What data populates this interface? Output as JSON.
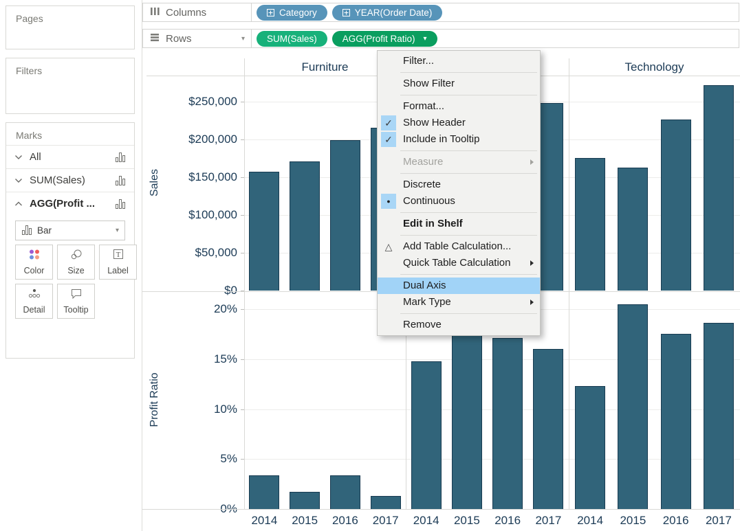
{
  "sidebar": {
    "pages_label": "Pages",
    "filters_label": "Filters",
    "marks_label": "Marks",
    "marks_cards": [
      {
        "label": "All",
        "state": "collapsed",
        "bold": false
      },
      {
        "label": "SUM(Sales)",
        "state": "collapsed",
        "bold": false
      },
      {
        "label": "AGG(Profit ...",
        "state": "expanded",
        "bold": true
      }
    ],
    "mark_type_label": "Bar",
    "mark_buttons": [
      {
        "label": "Color",
        "icon": "color-icon"
      },
      {
        "label": "Size",
        "icon": "size-icon"
      },
      {
        "label": "Label",
        "icon": "label-icon"
      },
      {
        "label": "Detail",
        "icon": "detail-icon"
      },
      {
        "label": "Tooltip",
        "icon": "tooltip-icon"
      }
    ]
  },
  "shelves": {
    "columns": {
      "label": "Columns",
      "pills": [
        {
          "label": "Category",
          "kind": "dimension",
          "grid_icon": true,
          "caret": false
        },
        {
          "label": "YEAR(Order Date)",
          "kind": "dimension",
          "grid_icon": true,
          "caret": false
        }
      ]
    },
    "rows": {
      "label": "Rows",
      "pills": [
        {
          "label": "SUM(Sales)",
          "kind": "measure",
          "grid_icon": false,
          "caret": false
        },
        {
          "label": "AGG(Profit Ratio)",
          "kind": "measure-selected",
          "grid_icon": false,
          "caret": true
        }
      ]
    }
  },
  "context_menu": {
    "items": [
      {
        "label": "Filter..."
      },
      {
        "sep": true
      },
      {
        "label": "Show Filter"
      },
      {
        "sep": true
      },
      {
        "label": "Format..."
      },
      {
        "label": "Show Header",
        "check": true
      },
      {
        "label": "Include in Tooltip",
        "check": true
      },
      {
        "sep": true
      },
      {
        "label": "Measure",
        "disabled": true,
        "submenu": true
      },
      {
        "sep": true
      },
      {
        "label": "Discrete"
      },
      {
        "label": "Continuous",
        "radio": true
      },
      {
        "sep": true
      },
      {
        "label": "Edit in Shelf",
        "bold": true
      },
      {
        "sep": true
      },
      {
        "label": "Add Table Calculation...",
        "icon": "triangle"
      },
      {
        "label": "Quick Table Calculation",
        "submenu": true
      },
      {
        "sep": true
      },
      {
        "label": "Dual Axis",
        "highlight": true
      },
      {
        "label": "Mark Type",
        "submenu": true
      },
      {
        "sep": true
      },
      {
        "label": "Remove"
      }
    ]
  },
  "chart_data": {
    "type": "bar",
    "facet_columns": [
      "Furniture",
      "",
      "Technology"
    ],
    "x_categories": [
      "2014",
      "2015",
      "2016",
      "2017"
    ],
    "rows": [
      {
        "measure": "Sales",
        "axis_title": "Sales",
        "tick_values": [
          0,
          50000,
          100000,
          150000,
          200000,
          250000
        ],
        "tick_labels": [
          "$0",
          "$50,000",
          "$100,000",
          "$150,000",
          "$200,000",
          "$250,000"
        ],
        "ylim": [
          0,
          284500
        ],
        "series": [
          {
            "facet": "Furniture",
            "values": [
              157000,
              170500,
              199000,
              215500
            ]
          },
          {
            "facet": "",
            "values": [
              152000,
              137000,
              184000,
              248000
            ]
          },
          {
            "facet": "Technology",
            "values": [
              175000,
              163000,
              226000,
              272000
            ]
          }
        ]
      },
      {
        "measure": "Profit Ratio",
        "axis_title": "Profit Ratio",
        "tick_values": [
          0,
          5,
          10,
          15,
          20
        ],
        "tick_labels": [
          "0%",
          "5%",
          "10%",
          "15%",
          "20%"
        ],
        "ylim": [
          0,
          21.72
        ],
        "series": [
          {
            "facet": "Furniture",
            "values": [
              3.4,
              1.7,
              3.4,
              1.3
            ]
          },
          {
            "facet": "",
            "values": [
              14.8,
              17.4,
              17.1,
              16.0
            ]
          },
          {
            "facet": "Technology",
            "values": [
              12.3,
              20.5,
              17.5,
              18.6
            ]
          }
        ]
      }
    ],
    "grid": "on",
    "legend": "none"
  },
  "colors": {
    "bar_fill": "#31647a",
    "bar_stroke": "#173a50",
    "dimension_pill": "#5794b9",
    "measure_pill": "#17b17a",
    "selected_pill": "#0a9e5f",
    "menu_highlight": "#a1d3f7",
    "chart_text": "#1b3a55",
    "gridline": "#ececea"
  }
}
